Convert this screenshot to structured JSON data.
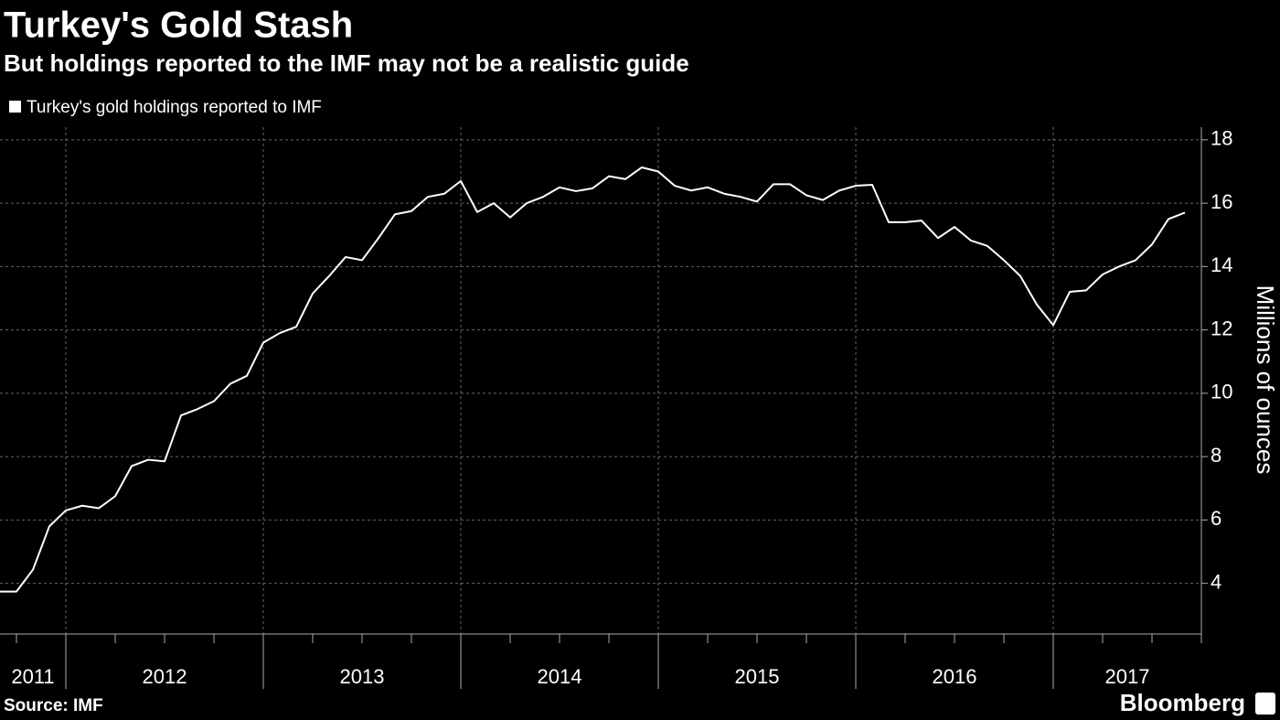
{
  "chart_data": {
    "type": "line",
    "title": "Turkey's Gold Stash",
    "subtitle": "But holdings reported to the IMF may not be a realistic guide",
    "y_label": "Millions of ounces",
    "source": "Source: IMF",
    "brand": "Bloomberg",
    "x": [
      "2011-09",
      "2011-10",
      "2011-11",
      "2011-12",
      "2012-01",
      "2012-02",
      "2012-03",
      "2012-04",
      "2012-05",
      "2012-06",
      "2012-07",
      "2012-08",
      "2012-09",
      "2012-10",
      "2012-11",
      "2012-12",
      "2013-01",
      "2013-02",
      "2013-03",
      "2013-04",
      "2013-05",
      "2013-06",
      "2013-07",
      "2013-08",
      "2013-09",
      "2013-10",
      "2013-11",
      "2013-12",
      "2014-01",
      "2014-02",
      "2014-03",
      "2014-04",
      "2014-05",
      "2014-06",
      "2014-07",
      "2014-08",
      "2014-09",
      "2014-10",
      "2014-11",
      "2014-12",
      "2015-01",
      "2015-02",
      "2015-03",
      "2015-04",
      "2015-05",
      "2015-06",
      "2015-07",
      "2015-08",
      "2015-09",
      "2015-10",
      "2015-11",
      "2015-12",
      "2016-01",
      "2016-02",
      "2016-03",
      "2016-04",
      "2016-05",
      "2016-06",
      "2016-07",
      "2016-08",
      "2016-09",
      "2016-10",
      "2016-11",
      "2016-12",
      "2017-01",
      "2017-02",
      "2017-03",
      "2017-04",
      "2017-05",
      "2017-06",
      "2017-07",
      "2017-08",
      "2017-09"
    ],
    "series": [
      {
        "name": "Turkey's gold holdings reported to IMF",
        "color": "#ffffff",
        "values": [
          3.74,
          3.74,
          4.43,
          5.8,
          6.3,
          6.45,
          6.37,
          6.75,
          7.7,
          7.9,
          7.85,
          9.3,
          9.5,
          9.75,
          10.3,
          10.55,
          11.6,
          11.9,
          12.1,
          13.15,
          13.7,
          14.3,
          14.2,
          14.9,
          15.65,
          15.75,
          16.2,
          16.3,
          16.7,
          15.72,
          16.0,
          15.55,
          16.0,
          16.2,
          16.5,
          16.38,
          16.47,
          16.85,
          16.76,
          17.13,
          17.0,
          16.55,
          16.4,
          16.5,
          16.3,
          16.2,
          16.05,
          16.6,
          16.6,
          16.25,
          16.1,
          16.4,
          16.55,
          16.58,
          15.4,
          15.4,
          15.45,
          14.9,
          15.25,
          14.82,
          14.65,
          14.2,
          13.7,
          12.8,
          12.15,
          13.2,
          13.25,
          13.75,
          14.0,
          14.2,
          14.7,
          15.5,
          15.7
        ]
      }
    ],
    "xlim": [
      "2011-09",
      "2017-10"
    ],
    "xticks": [
      2012,
      2013,
      2014,
      2015,
      2016,
      2017
    ],
    "year_labels": [
      2011,
      2012,
      2013,
      2014,
      2015,
      2016,
      2017
    ],
    "ylim": [
      2.4,
      18.4
    ],
    "yticks": [
      4,
      6,
      8,
      10,
      12,
      14,
      16,
      18
    ],
    "grid": true
  }
}
